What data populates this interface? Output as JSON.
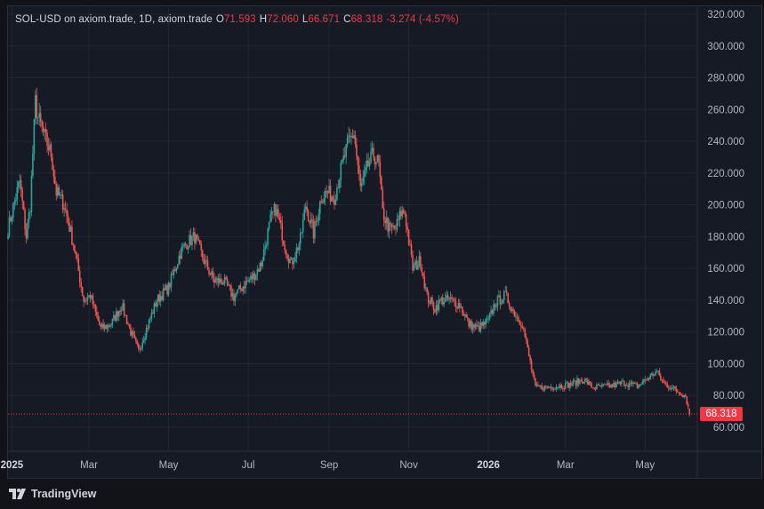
{
  "legend": {
    "symbol": "SOL-USD on axiom.trade, 1D, axiom.trade",
    "o_label": "O",
    "o_value": "71.593",
    "h_label": "H",
    "h_value": "72.060",
    "l_label": "L",
    "l_value": "66.671",
    "c_label": "C",
    "c_value": "68.318",
    "change": "-3.274 (-4.57%)"
  },
  "last_price_tag": "68.318",
  "branding": "TradingView",
  "colors": {
    "up": "#26a69a",
    "down": "#ef5350",
    "background": "#161a25",
    "grid": "#232733",
    "axis_text": "#b2b5be",
    "price_tag": "#f23645"
  },
  "chart_data": {
    "type": "candlestick",
    "title": "SOL-USD on axiom.trade, 1D, axiom.trade",
    "y_ticks": [
      "60.000",
      "80.000",
      "100.000",
      "120.000",
      "140.000",
      "160.000",
      "180.000",
      "200.000",
      "220.000",
      "240.000",
      "260.000",
      "280.000",
      "300.000",
      "320.000"
    ],
    "ylim": [
      60,
      320
    ],
    "x_ticks": [
      {
        "label": "2025",
        "date": "2025-01-01"
      },
      {
        "label": "Mar",
        "date": "2025-03-01"
      },
      {
        "label": "May",
        "date": "2025-05-01"
      },
      {
        "label": "Jul",
        "date": "2025-07-01"
      },
      {
        "label": "Sep",
        "date": "2025-09-01"
      },
      {
        "label": "Nov",
        "date": "2025-11-01"
      },
      {
        "label": "2026",
        "date": "2026-01-01"
      },
      {
        "label": "Mar",
        "date": "2026-03-01"
      },
      {
        "label": "May",
        "date": "2026-05-01"
      }
    ],
    "x_range": [
      "2024-12-29",
      "2026-06-10"
    ],
    "grid": true,
    "close_path": [
      [
        "2024-12-29",
        185
      ],
      [
        "2025-01-07",
        215
      ],
      [
        "2025-01-12",
        180
      ],
      [
        "2025-01-15",
        200
      ],
      [
        "2025-01-19",
        265
      ],
      [
        "2025-01-21",
        255
      ],
      [
        "2025-01-25",
        245
      ],
      [
        "2025-01-31",
        232
      ],
      [
        "2025-02-04",
        208
      ],
      [
        "2025-02-10",
        200
      ],
      [
        "2025-02-18",
        172
      ],
      [
        "2025-02-25",
        140
      ],
      [
        "2025-03-02",
        143
      ],
      [
        "2025-03-06",
        132
      ],
      [
        "2025-03-10",
        122
      ],
      [
        "2025-03-18",
        125
      ],
      [
        "2025-03-26",
        137
      ],
      [
        "2025-04-02",
        120
      ],
      [
        "2025-04-08",
        108
      ],
      [
        "2025-04-11",
        115
      ],
      [
        "2025-04-22",
        140
      ],
      [
        "2025-05-01",
        148
      ],
      [
        "2025-05-10",
        170
      ],
      [
        "2025-05-15",
        176
      ],
      [
        "2025-05-21",
        180
      ],
      [
        "2025-05-28",
        165
      ],
      [
        "2025-06-05",
        152
      ],
      [
        "2025-06-12",
        152
      ],
      [
        "2025-06-20",
        142
      ],
      [
        "2025-06-28",
        150
      ],
      [
        "2025-07-05",
        155
      ],
      [
        "2025-07-11",
        163
      ],
      [
        "2025-07-18",
        190
      ],
      [
        "2025-07-22",
        198
      ],
      [
        "2025-07-30",
        172
      ],
      [
        "2025-08-03",
        163
      ],
      [
        "2025-08-10",
        178
      ],
      [
        "2025-08-14",
        200
      ],
      [
        "2025-08-20",
        182
      ],
      [
        "2025-08-26",
        205
      ],
      [
        "2025-08-30",
        208
      ],
      [
        "2025-09-05",
        205
      ],
      [
        "2025-09-10",
        222
      ],
      [
        "2025-09-16",
        240
      ],
      [
        "2025-09-20",
        245
      ],
      [
        "2025-09-25",
        210
      ],
      [
        "2025-10-01",
        225
      ],
      [
        "2025-10-05",
        232
      ],
      [
        "2025-10-09",
        225
      ],
      [
        "2025-10-12",
        195
      ],
      [
        "2025-10-17",
        185
      ],
      [
        "2025-10-22",
        185
      ],
      [
        "2025-10-26",
        195
      ],
      [
        "2025-10-29",
        195
      ],
      [
        "2025-11-04",
        160
      ],
      [
        "2025-11-10",
        165
      ],
      [
        "2025-11-15",
        142
      ],
      [
        "2025-11-21",
        135
      ],
      [
        "2025-11-26",
        140
      ],
      [
        "2025-12-03",
        140
      ],
      [
        "2025-12-10",
        137
      ],
      [
        "2025-12-17",
        125
      ],
      [
        "2025-12-24",
        122
      ],
      [
        "2026-01-01",
        127
      ],
      [
        "2026-01-06",
        138
      ],
      [
        "2026-01-14",
        143
      ],
      [
        "2026-01-20",
        133
      ],
      [
        "2026-01-27",
        125
      ],
      [
        "2026-02-01",
        105
      ],
      [
        "2026-02-06",
        85
      ],
      [
        "2026-02-14",
        85
      ],
      [
        "2026-02-24",
        86
      ],
      [
        "2026-03-05",
        87
      ],
      [
        "2026-03-15",
        90
      ],
      [
        "2026-03-22",
        85
      ],
      [
        "2026-04-05",
        86
      ],
      [
        "2026-04-15",
        88
      ],
      [
        "2026-04-25",
        86
      ],
      [
        "2026-05-05",
        92
      ],
      [
        "2026-05-10",
        95
      ],
      [
        "2026-05-15",
        88
      ],
      [
        "2026-05-25",
        83
      ],
      [
        "2026-06-01",
        80
      ],
      [
        "2026-06-04",
        68.318
      ]
    ],
    "last_candle": {
      "open": 71.593,
      "high": 72.06,
      "low": 66.671,
      "close": 68.318
    },
    "last_price_line": 68.318
  }
}
